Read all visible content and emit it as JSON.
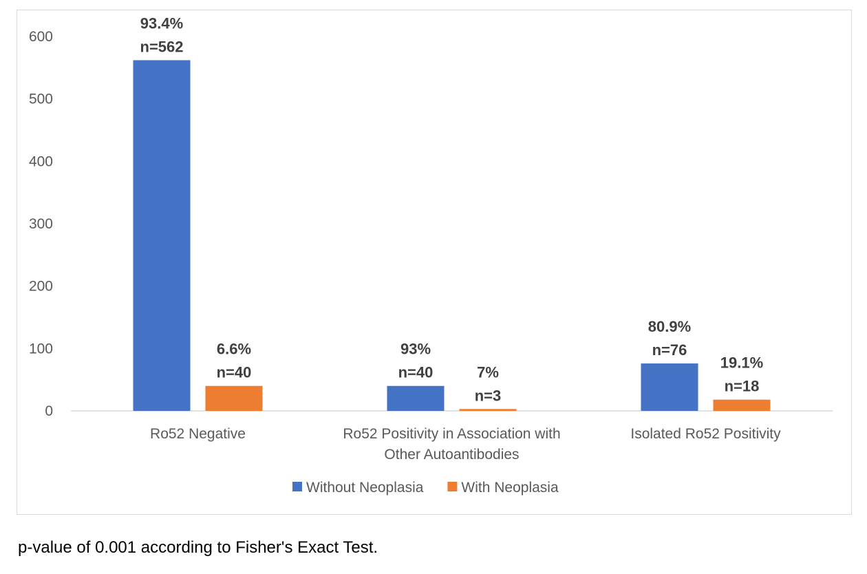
{
  "chart_data": {
    "type": "bar",
    "categories": [
      [
        "Ro52 Negative"
      ],
      [
        "Ro52 Positivity in Association with",
        "Other Autoantibodies"
      ],
      [
        "Isolated Ro52 Positivity"
      ]
    ],
    "series": [
      {
        "name": "Without Neoplasia",
        "color": "#4472C4",
        "values": [
          562,
          40,
          76
        ],
        "labels": [
          [
            "93.4%",
            "n=562"
          ],
          [
            "93%",
            "n=40"
          ],
          [
            "80.9%",
            "n=76"
          ]
        ]
      },
      {
        "name": "With Neoplasia",
        "color": "#ED7D31",
        "values": [
          40,
          3,
          18
        ],
        "labels": [
          [
            "6.6%",
            "n=40"
          ],
          [
            "7%",
            "n=3"
          ],
          [
            "19.1%",
            "n=18"
          ]
        ]
      }
    ],
    "yticks": [
      "0",
      "100",
      "200",
      "300",
      "400",
      "500",
      "600"
    ],
    "ylim": [
      0,
      600
    ],
    "grid": false,
    "legend_position": "bottom"
  },
  "footnote": "p-value of 0.001 according to Fisher's Exact Test."
}
